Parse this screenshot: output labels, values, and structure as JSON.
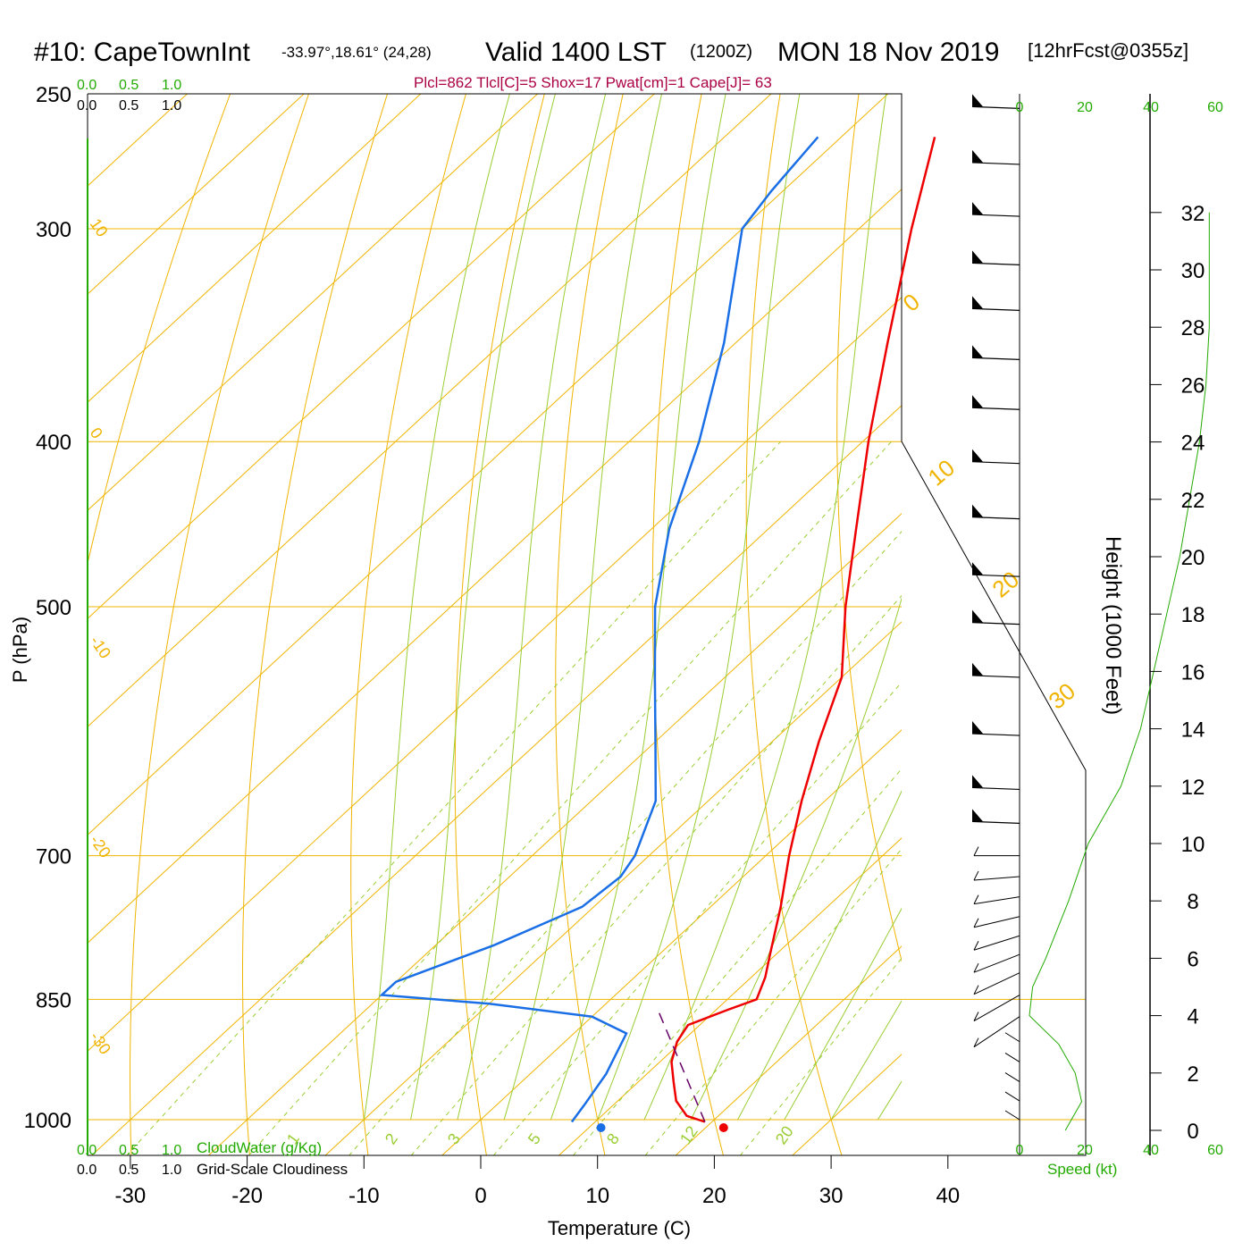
{
  "header": {
    "station": "#10: CapeTownInt",
    "coords": "-33.97°,18.61° (24,28)",
    "valid": "Valid 1400 LST",
    "zulu": "(1200Z)",
    "date": "MON 18 Nov 2019",
    "forecast": "[12hrFcst@0355z]",
    "indices": "Plcl=862 Tlcl[C]=5 Shox=17 Pwat[cm]=1 Cape[J]= 63"
  },
  "axes": {
    "xlabel": "Temperature (C)",
    "ylabel": "P (hPa)",
    "height_label": "Height (1000 Feet)",
    "speed_label": "Speed (kt)",
    "cloudwater_label": "CloudWater (g/Kg)",
    "cloudiness_label": "Grid-Scale Cloudiness",
    "scale_top": [
      "0.0",
      "0.5",
      "1.0"
    ],
    "scale_bottom": [
      "0.0",
      "0.5",
      "1.0"
    ],
    "speed_ticks": [
      "0",
      "20",
      "40",
      "60"
    ]
  },
  "colors": {
    "temperature": "#ee0000",
    "dewpoint": "#1a6fe6",
    "parcel": "#660066",
    "isotherm": "#f0b400",
    "dry_adiabat": "#f0b400",
    "moist_adiabat": "#9acd32",
    "mixing_ratio": "#9acd32",
    "green_text": "#22aa00",
    "indices_text": "#aa0044"
  },
  "chart_data": {
    "type": "skew-t",
    "pressure_ticks": [
      250,
      300,
      400,
      500,
      700,
      850,
      1000
    ],
    "temperature_ticks": [
      -30,
      -20,
      -10,
      0,
      10,
      20,
      30,
      40
    ],
    "height_ticks_kft": [
      0,
      2,
      4,
      6,
      8,
      10,
      12,
      14,
      16,
      18,
      20,
      22,
      24,
      26,
      28,
      30,
      32
    ],
    "xlim": [
      -30,
      40
    ],
    "ylim_hpa": [
      1000,
      250
    ],
    "temperature_profile": [
      {
        "p": 1003,
        "t": 19.4
      },
      {
        "p": 995,
        "t": 17.3
      },
      {
        "p": 975,
        "t": 15.0
      },
      {
        "p": 950,
        "t": 13.0
      },
      {
        "p": 925,
        "t": 11.0
      },
      {
        "p": 900,
        "t": 9.6
      },
      {
        "p": 880,
        "t": 9.0
      },
      {
        "p": 862,
        "t": 11.0
      },
      {
        "p": 850,
        "t": 12.5
      },
      {
        "p": 825,
        "t": 11.2
      },
      {
        "p": 800,
        "t": 9.5
      },
      {
        "p": 750,
        "t": 6.0
      },
      {
        "p": 700,
        "t": 2.0
      },
      {
        "p": 650,
        "t": -2.0
      },
      {
        "p": 600,
        "t": -6.0
      },
      {
        "p": 550,
        "t": -10.0
      },
      {
        "p": 500,
        "t": -16.2
      },
      {
        "p": 450,
        "t": -22.5
      },
      {
        "p": 400,
        "t": -29.5
      },
      {
        "p": 350,
        "t": -37.0
      },
      {
        "p": 300,
        "t": -45.5
      },
      {
        "p": 265,
        "t": -52.0
      }
    ],
    "dewpoint_profile": [
      {
        "p": 1003,
        "td": 8.0
      },
      {
        "p": 980,
        "td": 7.5
      },
      {
        "p": 940,
        "td": 6.5
      },
      {
        "p": 890,
        "td": 4.5
      },
      {
        "p": 870,
        "td": 0.0
      },
      {
        "p": 855,
        "td": -10.0
      },
      {
        "p": 845,
        "td": -20.0
      },
      {
        "p": 830,
        "td": -20.0
      },
      {
        "p": 790,
        "td": -15.0
      },
      {
        "p": 750,
        "td": -11.0
      },
      {
        "p": 720,
        "td": -10.5
      },
      {
        "p": 700,
        "td": -11.2
      },
      {
        "p": 650,
        "td": -14.5
      },
      {
        "p": 600,
        "td": -20.0
      },
      {
        "p": 550,
        "td": -26.0
      },
      {
        "p": 500,
        "td": -32.5
      },
      {
        "p": 450,
        "td": -38.5
      },
      {
        "p": 400,
        "td": -44.0
      },
      {
        "p": 350,
        "td": -51.0
      },
      {
        "p": 300,
        "td": -60.0
      },
      {
        "p": 285,
        "td": -61.0
      },
      {
        "p": 265,
        "td": -62.0
      }
    ],
    "parcel_path": [
      {
        "p": 1003,
        "t": 19.4
      },
      {
        "p": 862,
        "t": 5.0
      }
    ],
    "surface_temperature_marker": 21.0,
    "surface_dewpoint_marker": 10.5,
    "mixing_ratio_labels": [
      "1",
      "2",
      "3",
      "5",
      "8",
      "12",
      "20"
    ],
    "isotherm_labels": [
      "10",
      "0",
      "-10",
      "-20",
      "-30"
    ],
    "dry_adiabat_labels": [
      "0",
      "10",
      "20",
      "30"
    ],
    "wind_speed_profile_kt": [
      {
        "kft": 0.0,
        "kt": 14
      },
      {
        "kft": 1.0,
        "kt": 19
      },
      {
        "kft": 2.0,
        "kt": 17
      },
      {
        "kft": 3.0,
        "kt": 12
      },
      {
        "kft": 4.0,
        "kt": 3
      },
      {
        "kft": 5.0,
        "kt": 4
      },
      {
        "kft": 6.0,
        "kt": 8
      },
      {
        "kft": 8.0,
        "kt": 15
      },
      {
        "kft": 10.0,
        "kt": 21
      },
      {
        "kft": 12.0,
        "kt": 31
      },
      {
        "kft": 14.0,
        "kt": 37
      },
      {
        "kft": 16.0,
        "kt": 41
      },
      {
        "kft": 18.0,
        "kt": 45
      },
      {
        "kft": 20.0,
        "kt": 49
      },
      {
        "kft": 22.0,
        "kt": 52
      },
      {
        "kft": 24.0,
        "kt": 55
      },
      {
        "kft": 26.0,
        "kt": 57
      },
      {
        "kft": 28.0,
        "kt": 58
      },
      {
        "kft": 30.0,
        "kt": 58
      },
      {
        "kft": 32.0,
        "kt": 58
      }
    ],
    "wind_barb_pressures": [
      255,
      275,
      295,
      315,
      335,
      358,
      383,
      412,
      444,
      480,
      512,
      550,
      595,
      640,
      670,
      700,
      720,
      740,
      760,
      780,
      800,
      820,
      845,
      870,
      900,
      925,
      950,
      975,
      1000
    ]
  }
}
